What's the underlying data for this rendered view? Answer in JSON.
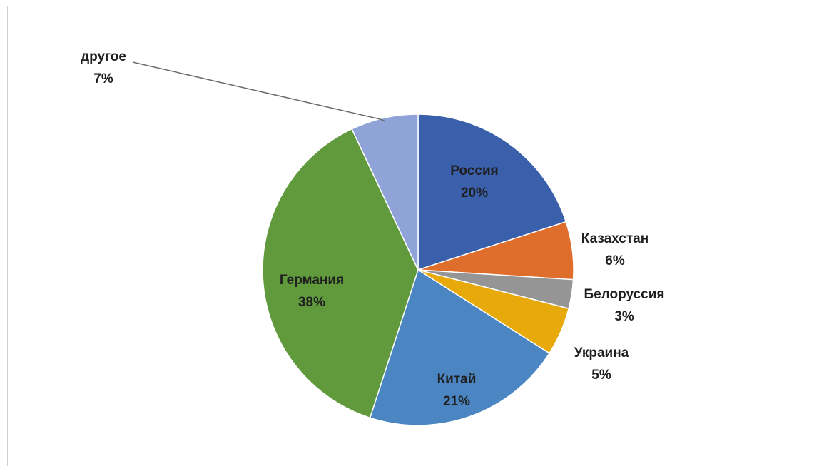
{
  "chart_data": {
    "type": "pie",
    "title": "",
    "start_angle_deg": 0,
    "direction": "clockwise",
    "slices": [
      {
        "label": "Россия",
        "percent_label": "20%",
        "value": 20,
        "color": "#3a5fab"
      },
      {
        "label": "Казахстан",
        "percent_label": "6%",
        "value": 6,
        "color": "#df6d2b"
      },
      {
        "label": "Белоруссия",
        "percent_label": "3%",
        "value": 3,
        "color": "#959595"
      },
      {
        "label": "Украина",
        "percent_label": "5%",
        "value": 5,
        "color": "#e8a90b"
      },
      {
        "label": "Китай",
        "percent_label": "21%",
        "value": 21,
        "color": "#4b86c3"
      },
      {
        "label": "Германия",
        "percent_label": "38%",
        "value": 38,
        "color": "#609a3c"
      },
      {
        "label": "другое",
        "percent_label": "7%",
        "value": 7,
        "color": "#8fa3d8"
      }
    ]
  }
}
